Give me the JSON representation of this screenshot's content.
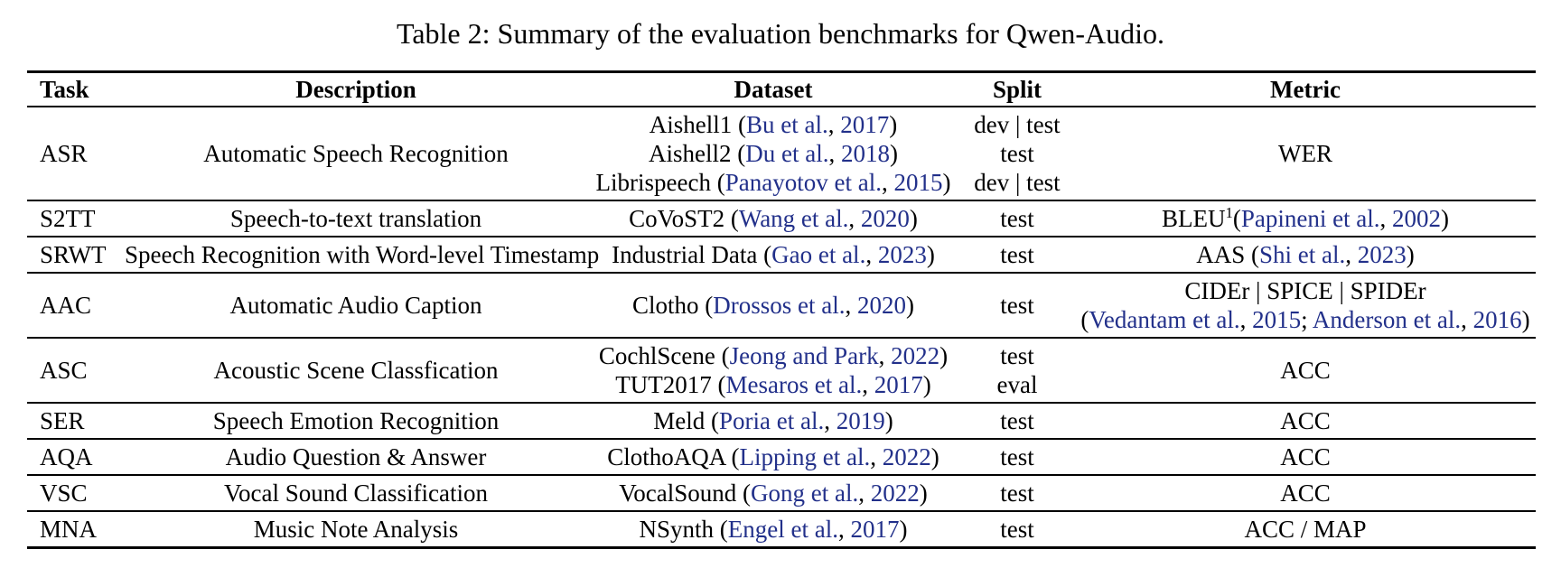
{
  "title": "Table 2: Summary of the evaluation benchmarks for Qwen-Audio.",
  "colors": {
    "citation": "#22308a",
    "text": "#000000",
    "rule": "#000000"
  },
  "table": {
    "headers": [
      "Task",
      "Description",
      "Dataset",
      "Split",
      "Metric"
    ],
    "rows": [
      {
        "task": "ASR",
        "description": "Automatic Speech Recognition",
        "dataset": [
          [
            {
              "t": "Aishell1 ("
            },
            {
              "t": "Bu et al.",
              "cite": true
            },
            {
              "t": ", "
            },
            {
              "t": "2017",
              "cite": true
            },
            {
              "t": ")"
            }
          ],
          [
            {
              "t": "Aishell2 ("
            },
            {
              "t": "Du et al.",
              "cite": true
            },
            {
              "t": ", "
            },
            {
              "t": "2018",
              "cite": true
            },
            {
              "t": ")"
            }
          ],
          [
            {
              "t": "Librispeech ("
            },
            {
              "t": "Panayotov et al.",
              "cite": true
            },
            {
              "t": ", "
            },
            {
              "t": "2015",
              "cite": true
            },
            {
              "t": ")"
            }
          ]
        ],
        "split": [
          "dev | test",
          "test",
          "dev | test"
        ],
        "metric": [
          [
            {
              "t": "WER"
            }
          ]
        ]
      },
      {
        "task": "S2TT",
        "description": "Speech-to-text translation",
        "dataset": [
          [
            {
              "t": "CoVoST2 ("
            },
            {
              "t": "Wang et al.",
              "cite": true
            },
            {
              "t": ", "
            },
            {
              "t": "2020",
              "cite": true
            },
            {
              "t": ")"
            }
          ]
        ],
        "split": [
          "test"
        ],
        "metric": [
          [
            {
              "t": "BLEU"
            },
            {
              "t": "1",
              "sup": true
            },
            {
              "t": "("
            },
            {
              "t": "Papineni et al.",
              "cite": true
            },
            {
              "t": ", "
            },
            {
              "t": "2002",
              "cite": true
            },
            {
              "t": ")"
            }
          ]
        ]
      },
      {
        "task": "SRWT",
        "description": "Speech Recognition with Word-level Timestamp",
        "dataset": [
          [
            {
              "t": "Industrial Data ("
            },
            {
              "t": "Gao et al.",
              "cite": true
            },
            {
              "t": ", "
            },
            {
              "t": "2023",
              "cite": true
            },
            {
              "t": ")"
            }
          ]
        ],
        "split": [
          "test"
        ],
        "metric": [
          [
            {
              "t": "AAS ("
            },
            {
              "t": "Shi et al.",
              "cite": true
            },
            {
              "t": ", "
            },
            {
              "t": "2023",
              "cite": true
            },
            {
              "t": ")"
            }
          ]
        ]
      },
      {
        "task": "AAC",
        "description": "Automatic Audio Caption",
        "dataset": [
          [
            {
              "t": "Clotho ("
            },
            {
              "t": "Drossos et al.",
              "cite": true
            },
            {
              "t": ", "
            },
            {
              "t": "2020",
              "cite": true
            },
            {
              "t": ")"
            }
          ]
        ],
        "split": [
          "test"
        ],
        "metric": [
          [
            {
              "t": "CIDEr | SPICE | SPIDEr"
            }
          ],
          [
            {
              "t": "("
            },
            {
              "t": "Vedantam et al.",
              "cite": true
            },
            {
              "t": ", "
            },
            {
              "t": "2015",
              "cite": true
            },
            {
              "t": "; "
            },
            {
              "t": "Anderson et al.",
              "cite": true
            },
            {
              "t": ", "
            },
            {
              "t": "2016",
              "cite": true
            },
            {
              "t": ")"
            }
          ]
        ]
      },
      {
        "task": "ASC",
        "description": "Acoustic Scene Classfication",
        "dataset": [
          [
            {
              "t": "CochlScene ("
            },
            {
              "t": "Jeong and Park",
              "cite": true
            },
            {
              "t": ", "
            },
            {
              "t": "2022",
              "cite": true
            },
            {
              "t": ")"
            }
          ],
          [
            {
              "t": "TUT2017 ("
            },
            {
              "t": "Mesaros et al.",
              "cite": true
            },
            {
              "t": ", "
            },
            {
              "t": "2017",
              "cite": true
            },
            {
              "t": ")"
            }
          ]
        ],
        "split": [
          "test",
          "eval"
        ],
        "metric": [
          [
            {
              "t": "ACC"
            }
          ]
        ]
      },
      {
        "task": "SER",
        "description": "Speech Emotion Recognition",
        "dataset": [
          [
            {
              "t": "Meld ("
            },
            {
              "t": "Poria et al.",
              "cite": true
            },
            {
              "t": ", "
            },
            {
              "t": "2019",
              "cite": true
            },
            {
              "t": ")"
            }
          ]
        ],
        "split": [
          "test"
        ],
        "metric": [
          [
            {
              "t": "ACC"
            }
          ]
        ]
      },
      {
        "task": "AQA",
        "description": "Audio Question & Answer",
        "dataset": [
          [
            {
              "t": "ClothoAQA ("
            },
            {
              "t": "Lipping et al.",
              "cite": true
            },
            {
              "t": ", "
            },
            {
              "t": "2022",
              "cite": true
            },
            {
              "t": ")"
            }
          ]
        ],
        "split": [
          "test"
        ],
        "metric": [
          [
            {
              "t": "ACC"
            }
          ]
        ]
      },
      {
        "task": "VSC",
        "description": "Vocal Sound Classification",
        "dataset": [
          [
            {
              "t": "VocalSound ("
            },
            {
              "t": "Gong et al.",
              "cite": true
            },
            {
              "t": ", "
            },
            {
              "t": "2022",
              "cite": true
            },
            {
              "t": ")"
            }
          ]
        ],
        "split": [
          "test"
        ],
        "metric": [
          [
            {
              "t": "ACC"
            }
          ]
        ]
      },
      {
        "task": "MNA",
        "description": "Music Note Analysis",
        "dataset": [
          [
            {
              "t": "NSynth ("
            },
            {
              "t": "Engel et al.",
              "cite": true
            },
            {
              "t": ", "
            },
            {
              "t": "2017",
              "cite": true
            },
            {
              "t": ")"
            }
          ]
        ],
        "split": [
          "test"
        ],
        "metric": [
          [
            {
              "t": "ACC / MAP"
            }
          ]
        ]
      }
    ]
  }
}
